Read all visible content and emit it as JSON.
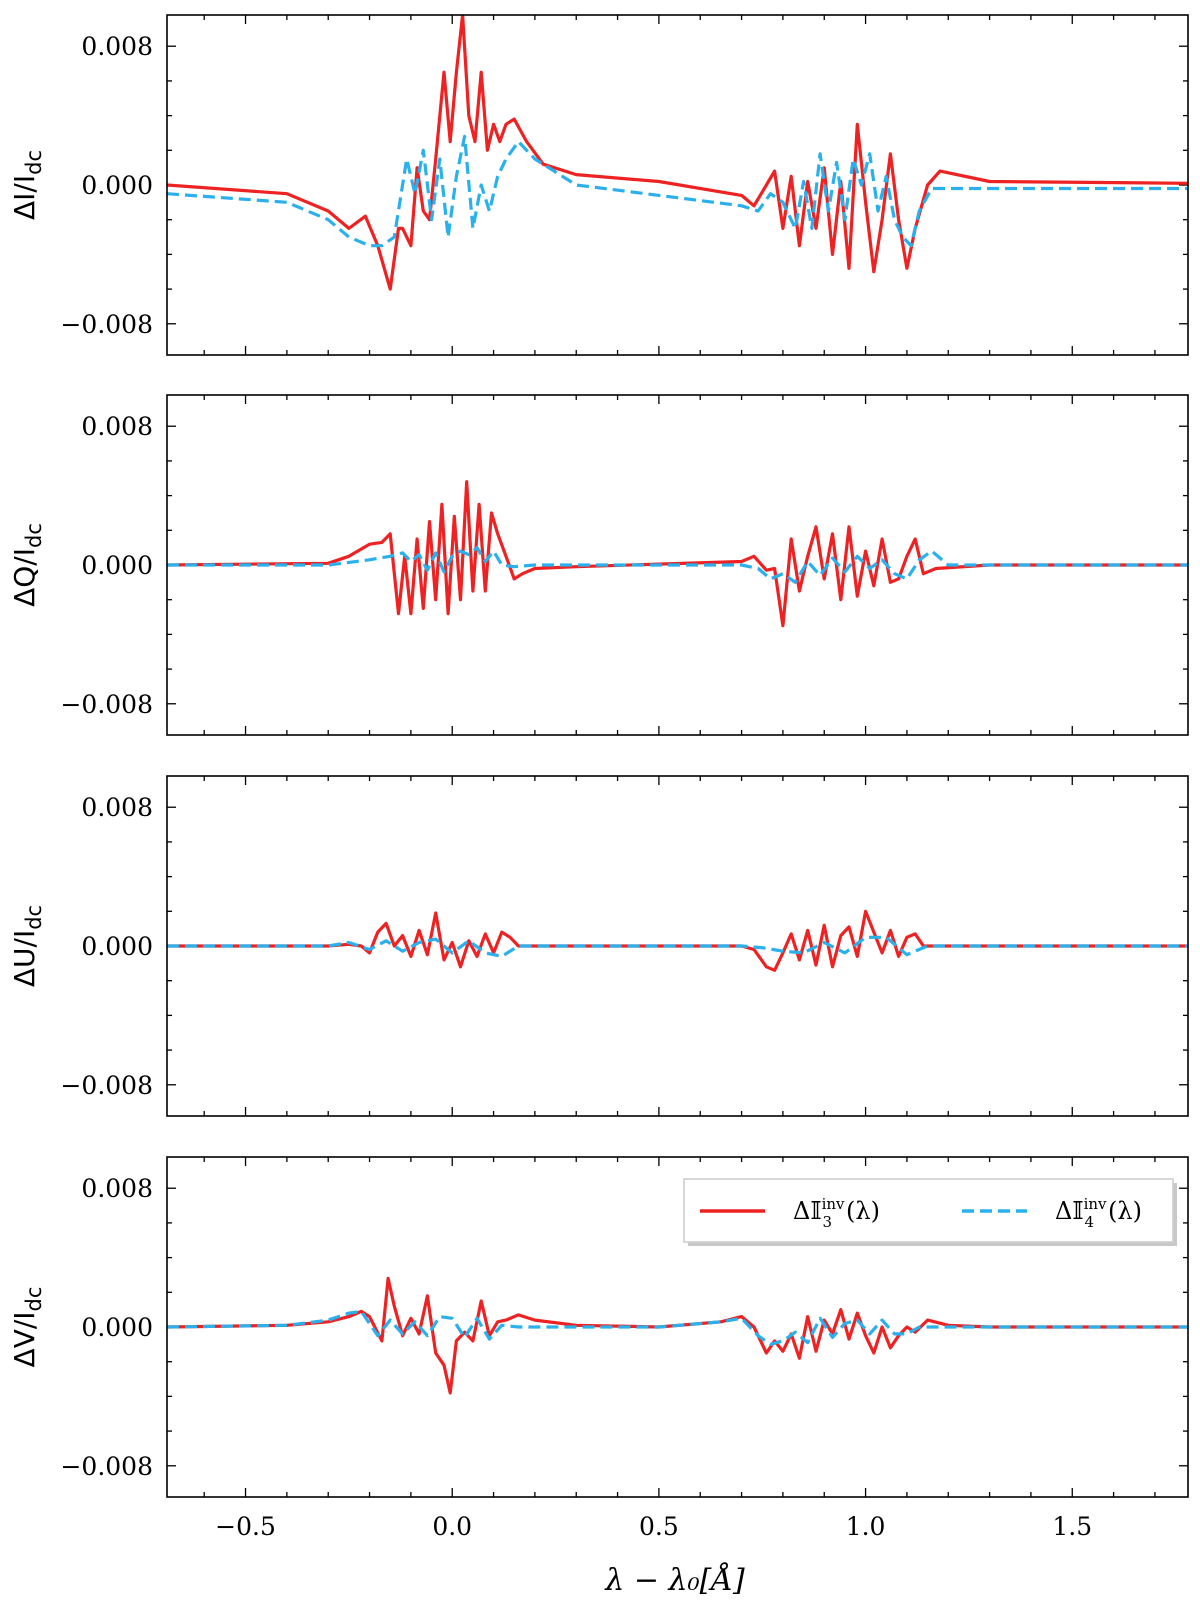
{
  "chart_data": {
    "type": "line",
    "xlabel": "λ − λ₀[Å]",
    "xlim": [
      -0.69,
      1.78
    ],
    "xticks": [
      -0.5,
      0.0,
      0.5,
      1.0,
      1.5
    ],
    "xtick_labels": [
      "−0.5",
      "0.0",
      "0.5",
      "1.0",
      "1.5"
    ],
    "ylim": [
      -0.0098,
      0.0098
    ],
    "yticks": [
      0.008,
      0.0,
      -0.008
    ],
    "ytick_labels": [
      "0.008",
      "0.000",
      "−0.008"
    ],
    "legend": {
      "position": "upper-right-of-bottom-panel",
      "entries": [
        {
          "label_main": "Δ𝕀",
          "label_sup": "inv",
          "label_sub": "3",
          "label_tail": "(λ)",
          "style": "solid",
          "color": "#ee2222"
        },
        {
          "label_main": "Δ𝕀",
          "label_sup": "inv",
          "label_sub": "4",
          "label_tail": "(λ)",
          "style": "dashed",
          "color": "#2ab0ec"
        }
      ]
    },
    "panels": [
      {
        "ylabel_main": "ΔI/I",
        "ylabel_sub": "dc",
        "series": [
          {
            "name": "ΔI3inv",
            "x": [
              -0.69,
              -0.4,
              -0.3,
              -0.25,
              -0.21,
              -0.18,
              -0.15,
              -0.13,
              -0.12,
              -0.1,
              -0.085,
              -0.07,
              -0.055,
              -0.04,
              -0.02,
              -0.005,
              0.01,
              0.025,
              0.04,
              0.055,
              0.07,
              0.085,
              0.1,
              0.115,
              0.13,
              0.15,
              0.18,
              0.22,
              0.3,
              0.5,
              0.7,
              0.73,
              0.76,
              0.78,
              0.8,
              0.82,
              0.84,
              0.86,
              0.88,
              0.9,
              0.92,
              0.94,
              0.96,
              0.98,
              1.0,
              1.02,
              1.04,
              1.06,
              1.08,
              1.1,
              1.12,
              1.15,
              1.18,
              1.3,
              1.78
            ],
            "y": [
              0.0,
              -0.0005,
              -0.0015,
              -0.0025,
              -0.0018,
              -0.0035,
              -0.006,
              -0.0025,
              -0.0025,
              -0.0035,
              0.001,
              -0.0015,
              -0.002,
              0.0015,
              0.0065,
              0.0025,
              0.0065,
              0.0098,
              0.004,
              0.0025,
              0.0065,
              0.002,
              0.0035,
              0.0025,
              0.0035,
              0.0038,
              0.0025,
              0.0012,
              0.0006,
              0.0002,
              -0.0006,
              -0.0012,
              0.0,
              0.0008,
              -0.0025,
              0.0005,
              -0.0035,
              0.0002,
              -0.0025,
              0.001,
              -0.004,
              0.0002,
              -0.0048,
              0.0035,
              -0.001,
              -0.005,
              -0.002,
              0.0018,
              -0.002,
              -0.0048,
              -0.0025,
              0.0,
              0.0008,
              0.0002,
              0.0001
            ]
          },
          {
            "name": "ΔI4inv",
            "x": [
              -0.69,
              -0.4,
              -0.3,
              -0.25,
              -0.2,
              -0.17,
              -0.14,
              -0.11,
              -0.09,
              -0.07,
              -0.05,
              -0.03,
              -0.01,
              0.01,
              0.03,
              0.05,
              0.07,
              0.09,
              0.11,
              0.13,
              0.16,
              0.2,
              0.3,
              0.5,
              0.7,
              0.74,
              0.77,
              0.8,
              0.83,
              0.85,
              0.87,
              0.89,
              0.91,
              0.93,
              0.95,
              0.97,
              0.99,
              1.01,
              1.03,
              1.05,
              1.07,
              1.09,
              1.11,
              1.13,
              1.16,
              1.3,
              1.78
            ],
            "y": [
              -0.0005,
              -0.001,
              -0.002,
              -0.003,
              -0.0035,
              -0.0035,
              -0.003,
              0.0015,
              -0.0005,
              0.002,
              -0.002,
              0.0015,
              -0.003,
              0.0005,
              0.0028,
              -0.0025,
              0.0,
              -0.0015,
              0.0005,
              0.0015,
              0.0025,
              0.0015,
              0.0,
              -0.0006,
              -0.0012,
              -0.0015,
              -0.0005,
              -0.001,
              -0.0025,
              0.0002,
              -0.0025,
              0.0018,
              -0.0015,
              0.0013,
              -0.002,
              0.0015,
              0.0,
              0.0018,
              -0.0015,
              0.0005,
              -0.002,
              -0.003,
              -0.0035,
              -0.0015,
              -0.0002,
              -0.0002,
              -0.0002
            ]
          }
        ]
      },
      {
        "ylabel_main": "ΔQ/I",
        "ylabel_sub": "dc",
        "series": [
          {
            "name": "ΔQ3inv",
            "x": [
              -0.69,
              -0.3,
              -0.25,
              -0.2,
              -0.17,
              -0.15,
              -0.13,
              -0.115,
              -0.1,
              -0.085,
              -0.07,
              -0.055,
              -0.04,
              -0.025,
              -0.01,
              0.005,
              0.02,
              0.035,
              0.05,
              0.065,
              0.08,
              0.095,
              0.11,
              0.13,
              0.15,
              0.17,
              0.2,
              0.3,
              0.7,
              0.73,
              0.76,
              0.78,
              0.8,
              0.82,
              0.84,
              0.86,
              0.88,
              0.9,
              0.92,
              0.94,
              0.96,
              0.98,
              1.0,
              1.02,
              1.04,
              1.06,
              1.08,
              1.1,
              1.12,
              1.14,
              1.17,
              1.3,
              1.78
            ],
            "y": [
              0.0,
              0.0001,
              0.0005,
              0.0012,
              0.0013,
              0.0018,
              -0.0028,
              0.0005,
              -0.0028,
              0.0015,
              -0.0025,
              0.0025,
              -0.002,
              0.0035,
              -0.0028,
              0.0028,
              -0.002,
              0.0048,
              -0.0015,
              0.0035,
              -0.0015,
              0.003,
              0.0018,
              0.0005,
              -0.0008,
              -0.0005,
              -0.0002,
              -0.0001,
              0.0002,
              0.0005,
              -0.0003,
              -0.0002,
              -0.0035,
              0.0015,
              -0.0015,
              0.0005,
              0.0022,
              -0.0008,
              0.0018,
              -0.002,
              0.0022,
              -0.0018,
              0.0008,
              -0.0012,
              0.0015,
              -0.001,
              -0.0008,
              0.0005,
              0.0015,
              -0.0005,
              -0.0002,
              0.0,
              0.0
            ]
          },
          {
            "name": "ΔQ4inv",
            "x": [
              -0.69,
              -0.3,
              -0.2,
              -0.15,
              -0.12,
              -0.1,
              -0.08,
              -0.06,
              -0.04,
              -0.02,
              0.0,
              0.02,
              0.04,
              0.06,
              0.08,
              0.1,
              0.12,
              0.15,
              0.2,
              0.7,
              0.74,
              0.77,
              0.8,
              0.83,
              0.86,
              0.89,
              0.92,
              0.95,
              0.98,
              1.01,
              1.04,
              1.07,
              1.1,
              1.13,
              1.16,
              1.2,
              1.78
            ],
            "y": [
              0.0,
              0.0,
              0.0003,
              0.0005,
              0.0007,
              0.0002,
              0.0006,
              -0.0003,
              0.0007,
              -0.0004,
              0.0005,
              0.0008,
              0.0006,
              0.001,
              0.0002,
              0.0008,
              0.0,
              -0.0001,
              0.0,
              0.0,
              -0.0002,
              -0.0008,
              -0.0005,
              -0.001,
              0.0002,
              -0.0006,
              0.0004,
              -0.0004,
              0.0005,
              -0.0002,
              0.0003,
              -0.0005,
              -0.0008,
              0.0003,
              0.0008,
              0.0,
              0.0
            ]
          }
        ]
      },
      {
        "ylabel_main": "ΔU/I",
        "ylabel_sub": "dc",
        "series": [
          {
            "name": "ΔU3inv",
            "x": [
              -0.69,
              -0.3,
              -0.25,
              -0.22,
              -0.2,
              -0.18,
              -0.16,
              -0.14,
              -0.12,
              -0.1,
              -0.08,
              -0.06,
              -0.04,
              -0.02,
              0.0,
              0.02,
              0.04,
              0.06,
              0.08,
              0.1,
              0.12,
              0.14,
              0.16,
              0.2,
              0.7,
              0.73,
              0.76,
              0.78,
              0.8,
              0.82,
              0.84,
              0.86,
              0.88,
              0.9,
              0.92,
              0.94,
              0.96,
              0.98,
              1.0,
              1.02,
              1.04,
              1.06,
              1.08,
              1.1,
              1.12,
              1.14,
              1.17,
              1.3,
              1.78
            ],
            "y": [
              0.0,
              0.0,
              0.0001,
              0.0,
              -0.0004,
              0.0008,
              0.0013,
              0.0,
              0.0006,
              -0.0006,
              0.0009,
              -0.0005,
              0.0019,
              -0.0008,
              0.0002,
              -0.0012,
              0.0003,
              -0.0006,
              0.0007,
              -0.0004,
              0.0008,
              0.0005,
              0.0,
              0.0,
              0.0,
              -0.0002,
              -0.0012,
              -0.0014,
              -0.0004,
              0.0007,
              -0.0008,
              0.0009,
              -0.0011,
              0.0012,
              -0.0012,
              0.0006,
              0.0011,
              -0.0006,
              0.002,
              0.0008,
              -0.0004,
              0.0009,
              -0.0006,
              0.0005,
              0.0007,
              0.0,
              0.0,
              0.0,
              0.0
            ]
          },
          {
            "name": "ΔU4inv",
            "x": [
              -0.69,
              -0.3,
              -0.25,
              -0.2,
              -0.16,
              -0.12,
              -0.08,
              -0.04,
              0.0,
              0.04,
              0.08,
              0.12,
              0.16,
              0.7,
              0.75,
              0.8,
              0.85,
              0.9,
              0.95,
              1.0,
              1.05,
              1.1,
              1.15,
              1.78
            ],
            "y": [
              0.0,
              0.0,
              0.0002,
              -0.0002,
              0.0003,
              -0.0003,
              0.0002,
              0.0004,
              -0.0004,
              0.0003,
              -0.0004,
              -0.0006,
              0.0,
              0.0,
              -0.0001,
              -0.0003,
              -0.0004,
              0.0002,
              -0.0004,
              0.0005,
              0.0005,
              -0.0005,
              0.0,
              0.0
            ]
          }
        ]
      },
      {
        "ylabel_main": "ΔV/I",
        "ylabel_sub": "dc",
        "series": [
          {
            "name": "ΔV3inv",
            "x": [
              -0.69,
              -0.4,
              -0.3,
              -0.25,
              -0.22,
              -0.2,
              -0.17,
              -0.155,
              -0.14,
              -0.12,
              -0.1,
              -0.08,
              -0.06,
              -0.04,
              -0.02,
              -0.005,
              0.01,
              0.03,
              0.05,
              0.07,
              0.09,
              0.11,
              0.13,
              0.16,
              0.2,
              0.3,
              0.5,
              0.65,
              0.7,
              0.73,
              0.76,
              0.78,
              0.8,
              0.82,
              0.84,
              0.86,
              0.88,
              0.9,
              0.92,
              0.94,
              0.96,
              0.98,
              1.0,
              1.02,
              1.04,
              1.06,
              1.08,
              1.1,
              1.12,
              1.15,
              1.2,
              1.3,
              1.78
            ],
            "y": [
              0.0,
              0.0001,
              0.0003,
              0.0006,
              0.0009,
              0.0006,
              -0.0008,
              0.0028,
              0.0012,
              -0.0005,
              0.0005,
              -0.0004,
              0.0018,
              -0.0015,
              -0.0022,
              -0.0038,
              -0.0008,
              -0.0003,
              -0.0008,
              0.0015,
              -0.0005,
              0.0003,
              0.0004,
              0.0007,
              0.0004,
              0.0001,
              0.0,
              0.0003,
              0.0006,
              0.0,
              -0.0015,
              -0.0008,
              -0.0014,
              -0.0004,
              -0.0018,
              0.0006,
              -0.0014,
              0.0004,
              -0.0004,
              0.001,
              -0.0007,
              0.0008,
              -0.0005,
              -0.0015,
              0.0,
              -0.0012,
              -0.0005,
              0.0,
              -0.0003,
              0.0004,
              0.0001,
              0.0,
              0.0
            ]
          },
          {
            "name": "ΔV4inv",
            "x": [
              -0.69,
              -0.4,
              -0.3,
              -0.25,
              -0.22,
              -0.18,
              -0.15,
              -0.12,
              -0.09,
              -0.06,
              -0.03,
              0.0,
              0.03,
              0.06,
              0.09,
              0.12,
              0.16,
              0.25,
              0.5,
              0.65,
              0.7,
              0.74,
              0.77,
              0.8,
              0.83,
              0.86,
              0.89,
              0.92,
              0.95,
              0.98,
              1.01,
              1.04,
              1.07,
              1.1,
              1.13,
              1.2,
              1.78
            ],
            "y": [
              0.0,
              0.0001,
              0.0004,
              0.0008,
              0.0009,
              -0.0005,
              0.0004,
              -0.0004,
              0.0003,
              -0.0005,
              0.0006,
              0.0005,
              -0.0006,
              0.0005,
              -0.0007,
              0.0001,
              0.0,
              0.0,
              0.0,
              0.0003,
              0.0005,
              -0.0005,
              -0.001,
              -0.0008,
              -0.0003,
              -0.0009,
              0.0005,
              -0.0006,
              0.0002,
              0.0004,
              -0.0004,
              0.0004,
              -0.0004,
              -0.0004,
              0.0,
              0.0,
              0.0
            ]
          }
        ]
      }
    ]
  }
}
